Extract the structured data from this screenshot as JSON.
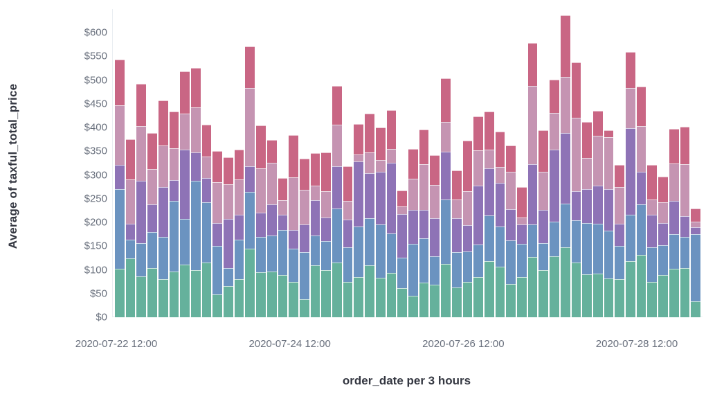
{
  "chart_data": {
    "type": "bar",
    "stacked": true,
    "title": "",
    "xlabel": "order_date per 3 hours",
    "ylabel": "Average of taxful_total_price",
    "ylim": [
      0,
      650
    ],
    "grid": false,
    "legend_position": "none",
    "pixels_per_unit": 0.685,
    "y_ticks": [
      {
        "label": "$0",
        "value": 0
      },
      {
        "label": "$50",
        "value": 50
      },
      {
        "label": "$100",
        "value": 100
      },
      {
        "label": "$150",
        "value": 150
      },
      {
        "label": "$200",
        "value": 200
      },
      {
        "label": "$250",
        "value": 250
      },
      {
        "label": "$300",
        "value": 300
      },
      {
        "label": "$350",
        "value": 350
      },
      {
        "label": "$400",
        "value": 400
      },
      {
        "label": "$450",
        "value": 450
      },
      {
        "label": "$500",
        "value": 500
      },
      {
        "label": "$550",
        "value": 550
      },
      {
        "label": "$600",
        "value": 600
      }
    ],
    "x_ticks": [
      {
        "label": "2020-07-22 12:00",
        "bar_index": 0
      },
      {
        "label": "2020-07-24 12:00",
        "bar_index": 16
      },
      {
        "label": "2020-07-26 12:00",
        "bar_index": 32
      },
      {
        "label": "2020-07-28 12:00",
        "bar_index": 48
      }
    ],
    "categories": [
      "2020-07-22 12:00",
      "2020-07-22 15:00",
      "2020-07-22 18:00",
      "2020-07-22 21:00",
      "2020-07-23 00:00",
      "2020-07-23 03:00",
      "2020-07-23 06:00",
      "2020-07-23 09:00",
      "2020-07-23 12:00",
      "2020-07-23 15:00",
      "2020-07-23 18:00",
      "2020-07-23 21:00",
      "2020-07-24 00:00",
      "2020-07-24 03:00",
      "2020-07-24 06:00",
      "2020-07-24 09:00",
      "2020-07-24 12:00",
      "2020-07-24 15:00",
      "2020-07-24 18:00",
      "2020-07-24 21:00",
      "2020-07-25 00:00",
      "2020-07-25 03:00",
      "2020-07-25 06:00",
      "2020-07-25 09:00",
      "2020-07-25 12:00",
      "2020-07-25 15:00",
      "2020-07-25 18:00",
      "2020-07-25 21:00",
      "2020-07-26 00:00",
      "2020-07-26 03:00",
      "2020-07-26 06:00",
      "2020-07-26 09:00",
      "2020-07-26 12:00",
      "2020-07-26 15:00",
      "2020-07-26 18:00",
      "2020-07-26 21:00",
      "2020-07-27 00:00",
      "2020-07-27 03:00",
      "2020-07-27 06:00",
      "2020-07-27 09:00",
      "2020-07-27 12:00",
      "2020-07-27 15:00",
      "2020-07-27 18:00",
      "2020-07-27 21:00",
      "2020-07-28 00:00",
      "2020-07-28 03:00",
      "2020-07-28 06:00",
      "2020-07-28 09:00",
      "2020-07-28 12:00",
      "2020-07-28 15:00",
      "2020-07-28 18:00",
      "2020-07-28 21:00",
      "2020-07-29 00:00",
      "2020-07-29 03:00"
    ],
    "series": [
      {
        "name": "series-1-green",
        "color": "#65b19c",
        "values": [
          102,
          124,
          86,
          104,
          81,
          97,
          111,
          100,
          115,
          48,
          66,
          80,
          144,
          95,
          97,
          89,
          75,
          38,
          109,
          100,
          116,
          75,
          85,
          110,
          83,
          94,
          62,
          46,
          73,
          68,
          113,
          63,
          74,
          85,
          119,
          107,
          70,
          85,
          127,
          99,
          128,
          148,
          116,
          90,
          92,
          82,
          80,
          119,
          131,
          75,
          89,
          102,
          104,
          34
        ]
      },
      {
        "name": "series-2-blue",
        "color": "#6b93c0",
        "values": [
          168,
          39,
          71,
          76,
          89,
          148,
          96,
          188,
          128,
          102,
          38,
          83,
          121,
          75,
          75,
          95,
          70,
          100,
          63,
          60,
          113,
          73,
          107,
          99,
          112,
          83,
          64,
          109,
          94,
          61,
          135,
          74,
          65,
          68,
          96,
          85,
          92,
          70,
          68,
          57,
          73,
          92,
          88,
          109,
          105,
          100,
          71,
          97,
          107,
          73,
          63,
          73,
          66,
          141
        ]
      },
      {
        "name": "series-3-purple",
        "color": "#8e73b6",
        "values": [
          51,
          34,
          131,
          58,
          105,
          44,
          146,
          60,
          51,
          49,
          103,
          53,
          53,
          51,
          66,
          32,
          39,
          58,
          75,
          51,
          89,
          58,
          136,
          95,
          112,
          148,
          92,
          72,
          60,
          80,
          101,
          72,
          55,
          124,
          99,
          92,
          66,
          40,
          127,
          70,
          153,
          148,
          61,
          71,
          80,
          88,
          46,
          183,
          68,
          68,
          46,
          71,
          44,
          15
        ]
      },
      {
        "name": "series-4-mauve",
        "color": "#c594b2",
        "values": [
          126,
          93,
          115,
          74,
          87,
          68,
          77,
          95,
          45,
          86,
          73,
          74,
          166,
          93,
          88,
          30,
          111,
          73,
          31,
          55,
          88,
          39,
          15,
          43,
          24,
          30,
          16,
          65,
          95,
          70,
          62,
          39,
          72,
          75,
          39,
          33,
          79,
          15,
          165,
          80,
          76,
          118,
          156,
          66,
          105,
          110,
          78,
          85,
          97,
          32,
          44,
          78,
          109,
          12
        ]
      },
      {
        "name": "series-5-rose",
        "color": "#c96684",
        "values": [
          96,
          86,
          89,
          77,
          95,
          76,
          88,
          83,
          67,
          65,
          58,
          64,
          87,
          91,
          48,
          48,
          89,
          65,
          68,
          81,
          81,
          73,
          65,
          82,
          69,
          81,
          33,
          63,
          73,
          63,
          92,
          61,
          107,
          71,
          80,
          74,
          55,
          65,
          91,
          88,
          70,
          130,
          116,
          75,
          53,
          14,
          46,
          75,
          83,
          73,
          54,
          73,
          78,
          27
        ]
      }
    ]
  }
}
